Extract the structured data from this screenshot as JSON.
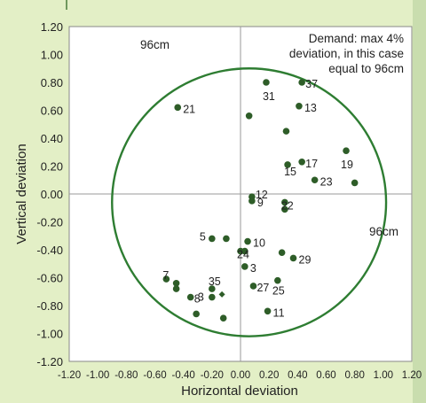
{
  "chart_data": {
    "type": "scatter",
    "xlabel": "Horizontal deviation",
    "ylabel": "Vertical deviation",
    "xlim": [
      -1.2,
      1.2
    ],
    "ylim": [
      -1.2,
      1.2
    ],
    "x_ticks": [
      "-1.20",
      "-1.00",
      "-0.80",
      "-0.60",
      "-0.40",
      "-0.20",
      "0.00",
      "0.20",
      "0.40",
      "0.60",
      "0.80",
      "1.00",
      "1.20"
    ],
    "y_ticks": [
      "1.20",
      "1.00",
      "0.80",
      "0.60",
      "0.40",
      "0.20",
      "0.00",
      "-0.20",
      "-0.40",
      "-0.60",
      "-0.80",
      "-1.00",
      "-1.20"
    ],
    "grid": false,
    "reference_circle": {
      "center": [
        0.06,
        -0.06
      ],
      "radius": 0.96,
      "color": "#2e7d32"
    },
    "annotations": {
      "demand_line1": "Demand: max 4%",
      "demand_line2": "deviation, in this case",
      "demand_line3": "equal to 96cm",
      "radius_top": "96cm",
      "radius_right": "96cm"
    },
    "marker_color": "#2e5d28",
    "background_color": "#ffffff",
    "points": [
      {
        "label": "21",
        "x": -0.44,
        "y": 0.62
      },
      {
        "label": "31",
        "x": 0.18,
        "y": 0.8
      },
      {
        "label": "37",
        "x": 0.43,
        "y": 0.8
      },
      {
        "label": "",
        "x": 0.06,
        "y": 0.56
      },
      {
        "label": "13",
        "x": 0.41,
        "y": 0.63
      },
      {
        "label": "",
        "x": 0.32,
        "y": 0.45
      },
      {
        "label": "17",
        "x": 0.43,
        "y": 0.23
      },
      {
        "label": "15",
        "x": 0.33,
        "y": 0.21
      },
      {
        "label": "19",
        "x": 0.74,
        "y": 0.31
      },
      {
        "label": "",
        "x": 0.8,
        "y": 0.08
      },
      {
        "label": "23",
        "x": 0.52,
        "y": 0.1
      },
      {
        "label": "12",
        "x": 0.08,
        "y": -0.02
      },
      {
        "label": "9",
        "x": 0.08,
        "y": -0.05
      },
      {
        "label": "22",
        "x": 0.31,
        "y": -0.06
      },
      {
        "label": "",
        "x": 0.31,
        "y": -0.11
      },
      {
        "label": "5",
        "x": -0.2,
        "y": -0.32
      },
      {
        "label": "",
        "x": -0.1,
        "y": -0.32
      },
      {
        "label": "10",
        "x": 0.05,
        "y": -0.34
      },
      {
        "label": "24",
        "x": 0.0,
        "y": -0.41
      },
      {
        "label": "",
        "x": 0.03,
        "y": -0.41
      },
      {
        "label": "",
        "x": 0.29,
        "y": -0.42
      },
      {
        "label": "29",
        "x": 0.37,
        "y": -0.46
      },
      {
        "label": "3",
        "x": 0.03,
        "y": -0.52
      },
      {
        "label": "7",
        "x": -0.52,
        "y": -0.61
      },
      {
        "label": "",
        "x": -0.45,
        "y": -0.64
      },
      {
        "label": "",
        "x": -0.45,
        "y": -0.68
      },
      {
        "label": "8",
        "x": -0.35,
        "y": -0.74
      },
      {
        "label": "35",
        "x": -0.2,
        "y": -0.68
      },
      {
        "label": "3",
        "x": -0.2,
        "y": -0.74
      },
      {
        "label": "",
        "x": -0.31,
        "y": -0.86
      },
      {
        "label": "",
        "x": -0.12,
        "y": -0.89
      },
      {
        "label": "27",
        "x": 0.09,
        "y": -0.66
      },
      {
        "label": "25",
        "x": 0.26,
        "y": -0.62
      },
      {
        "label": "11",
        "x": 0.19,
        "y": -0.84
      }
    ],
    "diamond_marker": {
      "x": -0.13,
      "y": -0.72
    }
  }
}
